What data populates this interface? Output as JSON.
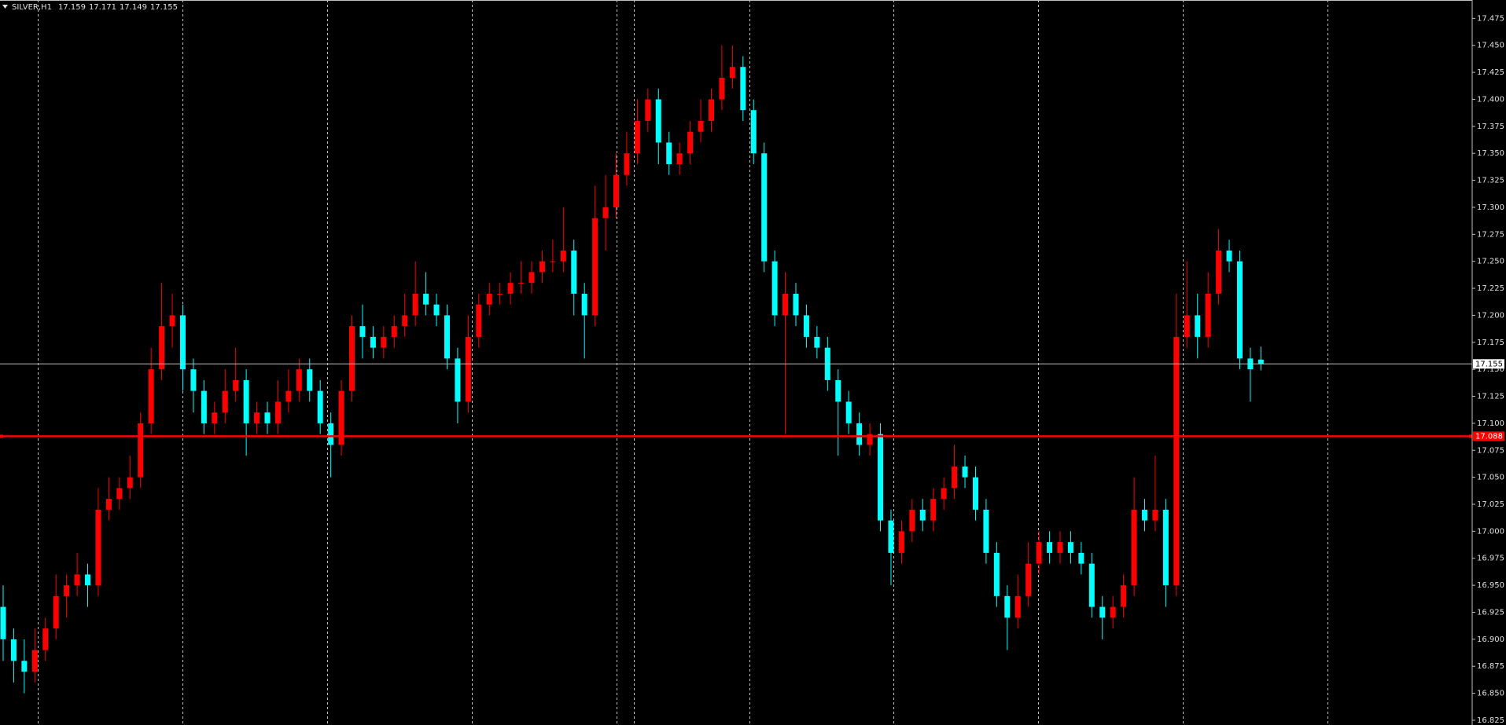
{
  "chart_data": {
    "type": "candlestick",
    "symbol": "SILVER,H1",
    "up_color": "#ff0000",
    "down_color": "#00ffff",
    "ylim": [
      16.8206,
      17.492
    ],
    "yticks": [
      16.825,
      {
        "value": 16.85,
        "label": "16.850"
      },
      16.875,
      {
        "value": 16.9,
        "label": "16.900"
      },
      16.925,
      {
        "value": 16.95,
        "label": "16.950"
      },
      16.975,
      {
        "value": 17,
        "label": "17.000"
      },
      17.025,
      {
        "value": 17.05,
        "label": "17.050"
      },
      17.075,
      {
        "value": 17.1,
        "label": "17.100"
      },
      17.125,
      {
        "value": 17.15,
        "label": "17.150"
      },
      17.175,
      {
        "value": 17.2,
        "label": "17.200"
      },
      17.225,
      {
        "value": 17.25,
        "label": "17.250"
      },
      17.275,
      {
        "value": 17.3,
        "label": "17.300"
      },
      17.325,
      {
        "value": 17.35,
        "label": "17.350"
      },
      17.375,
      {
        "value": 17.4,
        "label": "17.400"
      },
      17.425,
      {
        "value": 17.45,
        "label": "17.450"
      },
      17.475
    ],
    "price_lines": [
      {
        "value": 17.155,
        "color": "#c0c0c0"
      },
      {
        "value": 17.088,
        "color": "#ff0000"
      }
    ],
    "open": [
      16.93,
      16.9,
      16.88,
      16.87,
      16.89,
      16.91,
      16.94,
      16.95,
      16.96,
      16.95,
      17.02,
      17.03,
      17.04,
      17.05,
      17.1,
      17.15,
      17.19,
      17.2,
      17.15,
      17.13,
      17.1,
      17.11,
      17.13,
      17.14,
      17.1,
      17.11,
      17.1,
      17.12,
      17.13,
      17.15,
      17.13,
      17.1,
      17.08,
      17.13,
      17.19,
      17.18,
      17.17,
      17.18,
      17.19,
      17.2,
      17.22,
      17.21,
      17.2,
      17.16,
      17.12,
      17.18,
      17.21,
      17.22,
      17.22,
      17.23,
      17.23,
      17.24,
      17.25,
      17.25,
      17.26,
      17.22,
      17.2,
      17.29,
      17.3,
      17.33,
      17.35,
      17.38,
      17.4,
      17.36,
      17.34,
      17.35,
      17.37,
      17.38,
      17.4,
      17.42,
      17.43,
      17.39,
      17.35,
      17.25,
      17.2,
      17.22,
      17.2,
      17.18,
      17.17,
      17.14,
      17.12,
      17.1,
      17.08,
      17.09,
      17.01,
      16.98,
      17.0,
      17.02,
      17.01,
      17.03,
      17.04,
      17.06,
      17.05,
      17.02,
      16.98,
      16.94,
      16.92,
      16.94,
      16.97,
      16.99,
      16.98,
      16.99,
      16.98,
      16.97,
      16.93,
      16.92,
      16.93,
      16.95,
      17.02,
      17.01,
      17.02,
      16.95,
      17.18,
      17.2,
      17.18,
      17.22,
      17.26,
      17.25,
      17.16,
      17.159
    ],
    "high": [
      16.95,
      16.91,
      16.9,
      16.91,
      16.92,
      16.96,
      16.96,
      16.98,
      16.97,
      17.04,
      17.05,
      17.05,
      17.07,
      17.11,
      17.17,
      17.23,
      17.22,
      17.21,
      17.16,
      17.14,
      17.12,
      17.15,
      17.17,
      17.15,
      17.12,
      17.12,
      17.14,
      17.15,
      17.16,
      17.16,
      17.14,
      17.11,
      17.14,
      17.2,
      17.21,
      17.19,
      17.19,
      17.2,
      17.22,
      17.25,
      17.24,
      17.22,
      17.21,
      17.17,
      17.2,
      17.22,
      17.23,
      17.23,
      17.24,
      17.25,
      17.25,
      17.26,
      17.27,
      17.3,
      17.27,
      17.23,
      17.32,
      17.33,
      17.35,
      17.37,
      17.4,
      17.41,
      17.41,
      17.37,
      17.36,
      17.38,
      17.4,
      17.41,
      17.45,
      17.45,
      17.44,
      17.4,
      17.36,
      17.26,
      17.24,
      17.23,
      17.21,
      17.19,
      17.18,
      17.15,
      17.13,
      17.11,
      17.1,
      17.1,
      17.02,
      17.01,
      17.03,
      17.03,
      17.04,
      17.05,
      17.08,
      17.07,
      17.06,
      17.03,
      16.99,
      16.95,
      16.96,
      16.99,
      17.0,
      17.0,
      17.0,
      17.0,
      16.99,
      16.98,
      16.94,
      16.94,
      16.96,
      17.05,
      17.03,
      17.07,
      17.03,
      17.22,
      17.25,
      17.22,
      17.24,
      17.28,
      17.27,
      17.26,
      17.17,
      17.171
    ],
    "low": [
      16.88,
      16.86,
      16.85,
      16.86,
      16.88,
      16.9,
      16.92,
      16.94,
      16.93,
      16.94,
      17.01,
      17.02,
      17.03,
      17.04,
      17.09,
      17.14,
      17.17,
      17.13,
      17.11,
      17.09,
      17.09,
      17.1,
      17.12,
      17.07,
      17.09,
      17.09,
      17.09,
      17.11,
      17.12,
      17.12,
      17.09,
      17.05,
      17.07,
      17.12,
      17.16,
      17.16,
      17.16,
      17.17,
      17.18,
      17.19,
      17.2,
      17.19,
      17.15,
      17.1,
      17.11,
      17.17,
      17.2,
      17.21,
      17.21,
      17.22,
      17.22,
      17.23,
      17.24,
      17.24,
      17.2,
      17.16,
      17.19,
      17.26,
      17.29,
      17.32,
      17.34,
      17.37,
      17.34,
      17.33,
      17.33,
      17.34,
      17.36,
      17.37,
      17.39,
      17.41,
      17.38,
      17.34,
      17.24,
      17.19,
      17.09,
      17.19,
      17.17,
      17.16,
      17.13,
      17.07,
      17.09,
      17.07,
      17.07,
      17.0,
      16.95,
      16.97,
      16.99,
      17.0,
      17.0,
      17.02,
      17.03,
      17.04,
      17.01,
      16.97,
      16.93,
      16.89,
      16.91,
      16.93,
      16.96,
      16.97,
      16.97,
      16.97,
      16.96,
      16.92,
      16.9,
      16.91,
      16.92,
      16.94,
      17.0,
      17.0,
      16.93,
      16.94,
      17.17,
      17.16,
      17.17,
      17.21,
      17.24,
      17.15,
      17.12,
      17.149
    ],
    "close": [
      16.9,
      16.88,
      16.87,
      16.89,
      16.91,
      16.94,
      16.95,
      16.96,
      16.95,
      17.02,
      17.03,
      17.04,
      17.05,
      17.1,
      17.15,
      17.19,
      17.2,
      17.15,
      17.13,
      17.1,
      17.11,
      17.13,
      17.14,
      17.1,
      17.11,
      17.1,
      17.12,
      17.13,
      17.15,
      17.13,
      17.1,
      17.08,
      17.13,
      17.19,
      17.18,
      17.17,
      17.18,
      17.19,
      17.2,
      17.22,
      17.21,
      17.2,
      17.16,
      17.12,
      17.18,
      17.21,
      17.22,
      17.22,
      17.23,
      17.23,
      17.24,
      17.25,
      17.25,
      17.26,
      17.22,
      17.2,
      17.29,
      17.3,
      17.33,
      17.35,
      17.38,
      17.4,
      17.36,
      17.34,
      17.35,
      17.37,
      17.38,
      17.4,
      17.42,
      17.43,
      17.39,
      17.35,
      17.25,
      17.2,
      17.22,
      17.2,
      17.18,
      17.17,
      17.14,
      17.12,
      17.1,
      17.08,
      17.09,
      17.01,
      16.98,
      17.0,
      17.02,
      17.01,
      17.03,
      17.04,
      17.06,
      17.05,
      17.02,
      16.98,
      16.94,
      16.92,
      16.94,
      16.97,
      16.99,
      16.98,
      16.99,
      16.98,
      16.97,
      16.93,
      16.92,
      16.93,
      16.95,
      17.02,
      17.01,
      17.02,
      16.95,
      17.18,
      17.2,
      17.18,
      17.22,
      17.26,
      17.25,
      17.16,
      17.15,
      17.155
    ]
  }
}
